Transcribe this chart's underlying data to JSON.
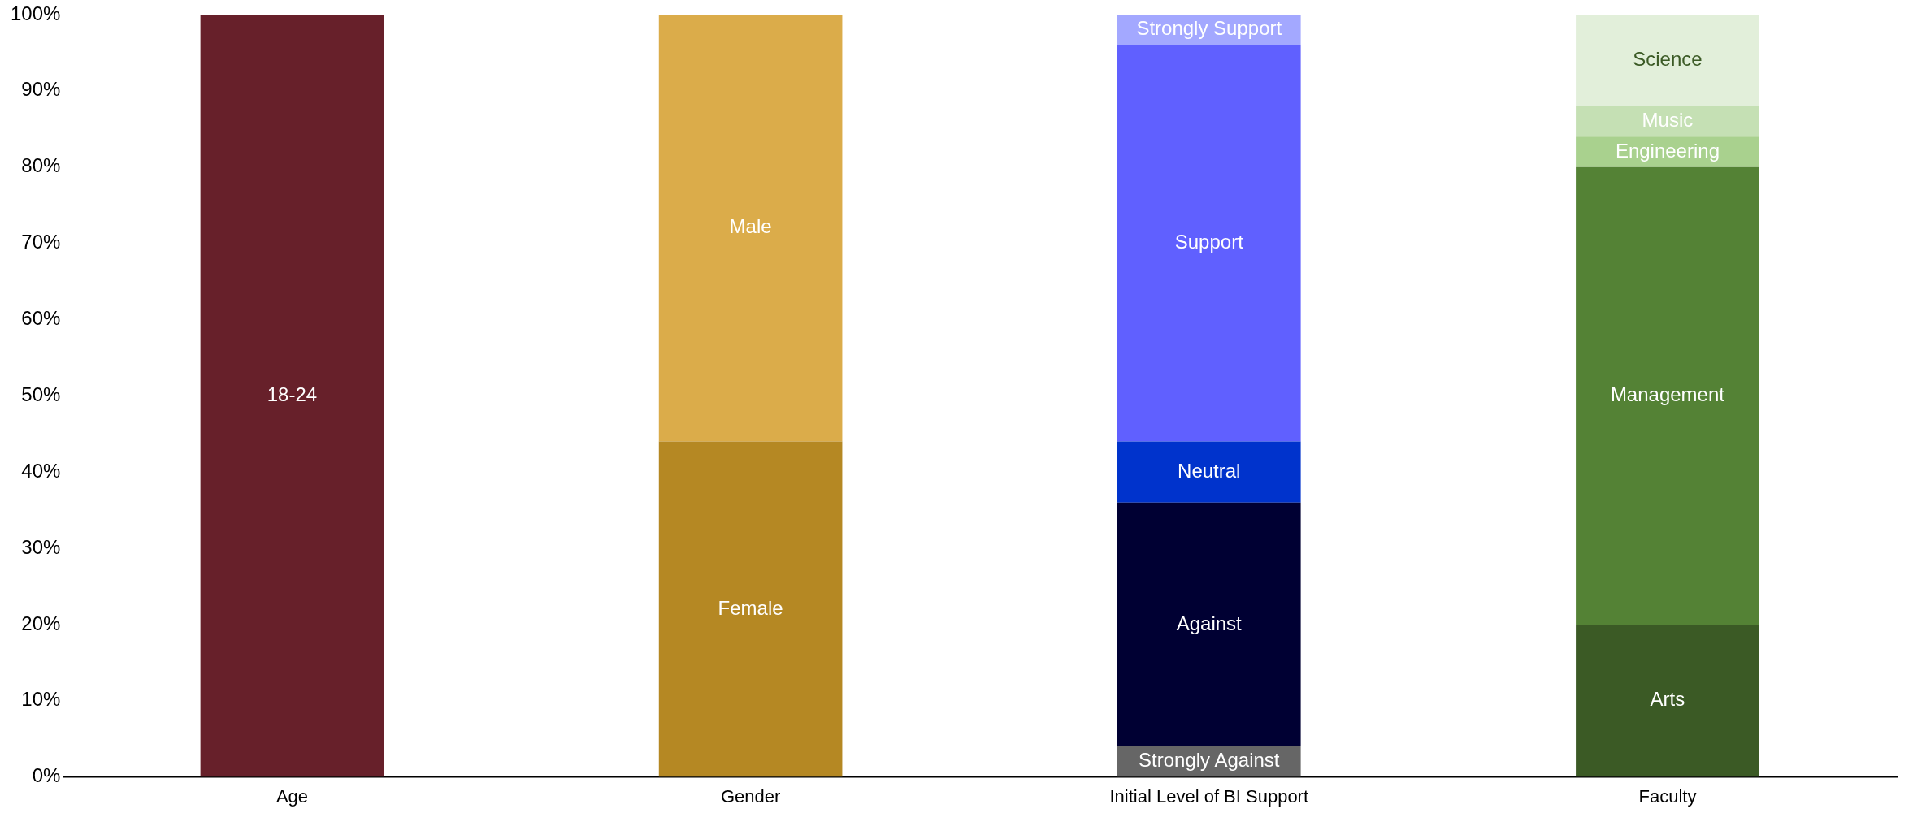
{
  "chart_data": {
    "type": "bar",
    "stacked": true,
    "categories": [
      "Age",
      "Gender",
      "Initial Level of BI Support",
      "Faculty"
    ],
    "ylim": [
      0,
      100
    ],
    "yticks": [
      {
        "value": 0,
        "label": "0%"
      },
      {
        "value": 10,
        "label": "10%"
      },
      {
        "value": 20,
        "label": "20%"
      },
      {
        "value": 30,
        "label": "30%"
      },
      {
        "value": 40,
        "label": "40%"
      },
      {
        "value": 50,
        "label": "50%"
      },
      {
        "value": 60,
        "label": "60%"
      },
      {
        "value": 70,
        "label": "70%"
      },
      {
        "value": 80,
        "label": "80%"
      },
      {
        "value": 90,
        "label": "90%"
      },
      {
        "value": 100,
        "label": "100%"
      }
    ],
    "grid": false,
    "legend": false,
    "series": [
      {
        "name": "18-24",
        "color": "#67202a",
        "values": [
          100,
          null,
          null,
          null
        ]
      },
      {
        "name": "Female",
        "color": "#b58823",
        "values": [
          null,
          44,
          null,
          null
        ]
      },
      {
        "name": "Male",
        "color": "#dbac4a",
        "values": [
          null,
          56,
          null,
          null
        ]
      },
      {
        "name": "Strongly Against",
        "color": "#666666",
        "values": [
          null,
          null,
          4,
          null
        ]
      },
      {
        "name": "Against",
        "color": "#000033",
        "values": [
          null,
          null,
          32,
          null
        ]
      },
      {
        "name": "Neutral",
        "color": "#0033cc",
        "values": [
          null,
          null,
          8,
          null
        ]
      },
      {
        "name": "Support",
        "color": "#6060ff",
        "values": [
          null,
          null,
          52,
          null
        ]
      },
      {
        "name": "Strongly Support",
        "color": "#a3a8ff",
        "values": [
          null,
          null,
          4,
          null
        ]
      },
      {
        "name": "Arts",
        "color": "#3b5a25",
        "values": [
          null,
          null,
          null,
          20
        ]
      },
      {
        "name": "Management",
        "color": "#548235",
        "values": [
          null,
          null,
          null,
          60
        ]
      },
      {
        "name": "Engineering",
        "color": "#a9d18e",
        "values": [
          null,
          null,
          null,
          4
        ]
      },
      {
        "name": "Music",
        "color": "#c5e0b4",
        "values": [
          null,
          null,
          null,
          4
        ]
      },
      {
        "name": "Science",
        "color": "#e2efda",
        "values": [
          null,
          null,
          null,
          12
        ]
      }
    ]
  }
}
